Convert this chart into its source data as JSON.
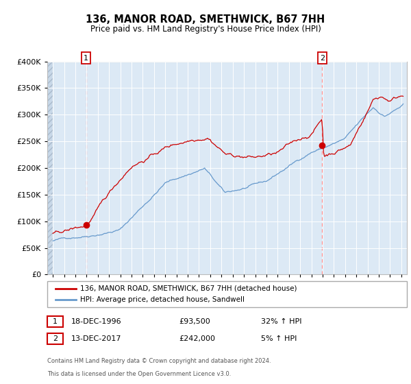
{
  "title": "136, MANOR ROAD, SMETHWICK, B67 7HH",
  "subtitle": "Price paid vs. HM Land Registry's House Price Index (HPI)",
  "legend_line1": "136, MANOR ROAD, SMETHWICK, B67 7HH (detached house)",
  "legend_line2": "HPI: Average price, detached house, Sandwell",
  "annotation1_date": "18-DEC-1996",
  "annotation1_price": "£93,500",
  "annotation1_hpi": "32% ↑ HPI",
  "annotation2_date": "13-DEC-2017",
  "annotation2_price": "£242,000",
  "annotation2_hpi": "5% ↑ HPI",
  "footnote_line1": "Contains HM Land Registry data © Crown copyright and database right 2024.",
  "footnote_line2": "This data is licensed under the Open Government Licence v3.0.",
  "hpi_color": "#6699cc",
  "price_color": "#cc0000",
  "marker_color": "#cc0000",
  "vline_color": "#ff8888",
  "background_plot": "#dce9f5",
  "grid_color": "#ffffff",
  "ylim": [
    0,
    400000
  ],
  "xlim_start": 1993.5,
  "xlim_end": 2025.5,
  "sale1_x": 1996.96,
  "sale1_y": 93500,
  "sale2_x": 2017.96,
  "sale2_y": 242000,
  "hatch_end": 1994.0
}
